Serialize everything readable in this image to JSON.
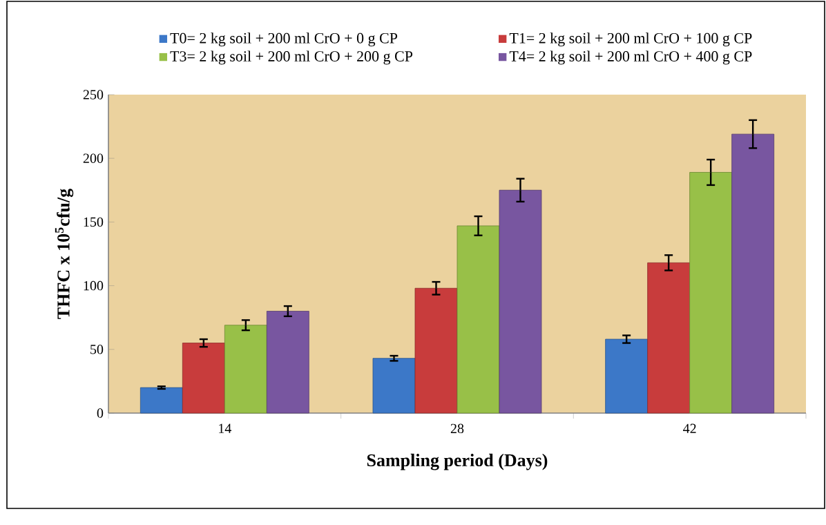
{
  "chart_data": {
    "type": "bar",
    "xlabel": "Sampling period (Days)",
    "ylabel": "THFC x 10$^{5}$cfu/g",
    "categories": [
      "14",
      "28",
      "42"
    ],
    "series": [
      {
        "name": "T0= 2 kg soil + 200 ml CrO + 0 g CP",
        "color": "#3c78c8",
        "values": [
          20,
          43,
          58
        ],
        "errors": [
          1,
          2,
          3
        ]
      },
      {
        "name": "T1= 2 kg soil + 200 ml CrO + 100 g CP",
        "color": "#c83c3c",
        "values": [
          55,
          98,
          118
        ],
        "errors": [
          3,
          5,
          6
        ]
      },
      {
        "name": "T3= 2 kg soil + 200 ml CrO + 200 g CP",
        "color": "#98c048",
        "values": [
          69,
          147,
          189
        ],
        "errors": [
          4,
          7.5,
          10
        ]
      },
      {
        "name": "T4= 2 kg soil + 200 ml CrO + 400 g CP",
        "color": "#7856a0",
        "values": [
          80,
          175,
          219
        ],
        "errors": [
          4,
          9,
          11
        ]
      }
    ],
    "ylim": [
      0,
      250
    ],
    "yticks": [
      0,
      50,
      100,
      150,
      200,
      250
    ],
    "grid": false,
    "legend": "top"
  }
}
